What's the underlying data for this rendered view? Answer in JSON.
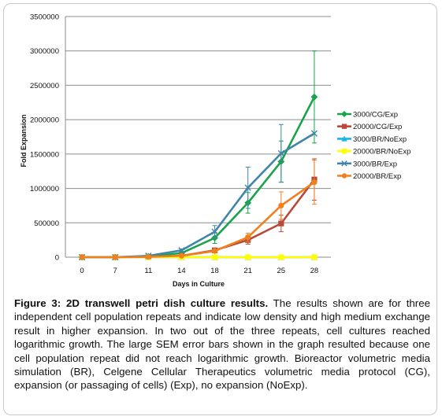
{
  "chart_data": {
    "type": "line",
    "title": "",
    "xlabel": "Days in Culture",
    "ylabel": "Fold Expansion",
    "categories": [
      "0",
      "7",
      "11",
      "14",
      "18",
      "21",
      "25",
      "28"
    ],
    "ylim": [
      0,
      3500000
    ],
    "yticks": [
      "0",
      "500000",
      "1000000",
      "1500000",
      "2000000",
      "2500000",
      "3000000",
      "3500000"
    ],
    "grid": true,
    "legend": "right",
    "series": [
      {
        "name": "3000/CG/Exp",
        "color": "#1aa34a",
        "marker": "diamond",
        "values": [
          0,
          0,
          10000,
          60000,
          280000,
          790000,
          1390000,
          2330000
        ],
        "err": [
          0,
          0,
          0,
          0,
          80000,
          150000,
          300000,
          670000
        ]
      },
      {
        "name": "20000/CG/Exp",
        "color": "#b84a3a",
        "marker": "square",
        "values": [
          0,
          0,
          5000,
          20000,
          100000,
          250000,
          490000,
          1130000
        ],
        "err": [
          0,
          0,
          0,
          0,
          20000,
          60000,
          120000,
          300000
        ]
      },
      {
        "name": "3000/BR/NoExp",
        "color": "#1ab4e8",
        "marker": "triangle",
        "values": [
          0,
          0,
          0,
          0,
          0,
          0,
          0,
          0
        ],
        "err": [
          0,
          0,
          0,
          0,
          0,
          0,
          0,
          0
        ]
      },
      {
        "name": "20000/BR/NoExp",
        "color": "#ffff00",
        "marker": "square",
        "values": [
          0,
          0,
          0,
          0,
          0,
          0,
          0,
          0
        ],
        "err": [
          0,
          0,
          0,
          0,
          0,
          0,
          0,
          0
        ]
      },
      {
        "name": "3000/BR/Exp",
        "color": "#3f86a8",
        "marker": "x",
        "values": [
          0,
          0,
          20000,
          100000,
          370000,
          1010000,
          1510000,
          1800000
        ],
        "err": [
          0,
          0,
          0,
          20000,
          90000,
          300000,
          420000,
          0
        ]
      },
      {
        "name": "20000/BR/Exp",
        "color": "#f07f1e",
        "marker": "circle",
        "values": [
          0,
          0,
          5000,
          20000,
          90000,
          290000,
          750000,
          1090000
        ],
        "err": [
          0,
          0,
          0,
          0,
          20000,
          60000,
          200000,
          320000
        ]
      }
    ]
  },
  "caption": {
    "label": "Figure 3: 2D transwell petri dish culture results.",
    "text": " The results shown are for three independent cell population repeats and indicate low density and high medium exchange result in higher expansion.  In two out of the three repeats, cell cultures reached logarithmic growth.  The large SEM error bars shown in the graph resulted because one cell population repeat did not reach logarithmic growth.  Bioreactor volumetric media simulation (BR), Celgene Cellular Therapeutics volumetric media protocol (CG), expansion (or passaging of cells) (Exp), no expansion (NoExp)."
  }
}
